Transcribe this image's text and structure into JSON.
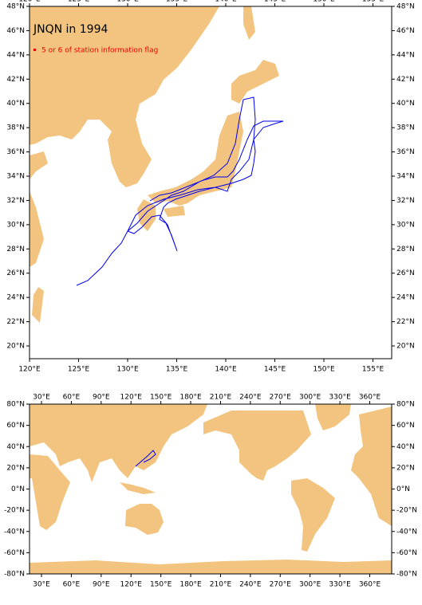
{
  "top_map": {
    "title": "JNQN in 1994",
    "legend": "5 or 6 of station information flag",
    "lon_labels": [
      "120°E",
      "125°E",
      "130°E",
      "135°E",
      "140°E",
      "145°E",
      "150°E",
      "155°E"
    ],
    "lat_labels": [
      "20°N",
      "22°N",
      "24°N",
      "26°N",
      "28°N",
      "30°N",
      "32°N",
      "34°N",
      "36°N",
      "38°N",
      "40°N",
      "42°N",
      "44°N",
      "46°N",
      "48°N"
    ]
  },
  "bottom_map": {
    "lon_labels": [
      "30°E",
      "60°E",
      "90°E",
      "120°E",
      "150°E",
      "180°E",
      "210°E",
      "240°E",
      "270°E",
      "300°E",
      "330°E",
      "360°E"
    ],
    "lat_labels": [
      "80°N",
      "60°N",
      "40°N",
      "20°N",
      "0°N",
      "-20°N",
      "-40°N",
      "-60°N",
      "-80°N"
    ]
  }
}
